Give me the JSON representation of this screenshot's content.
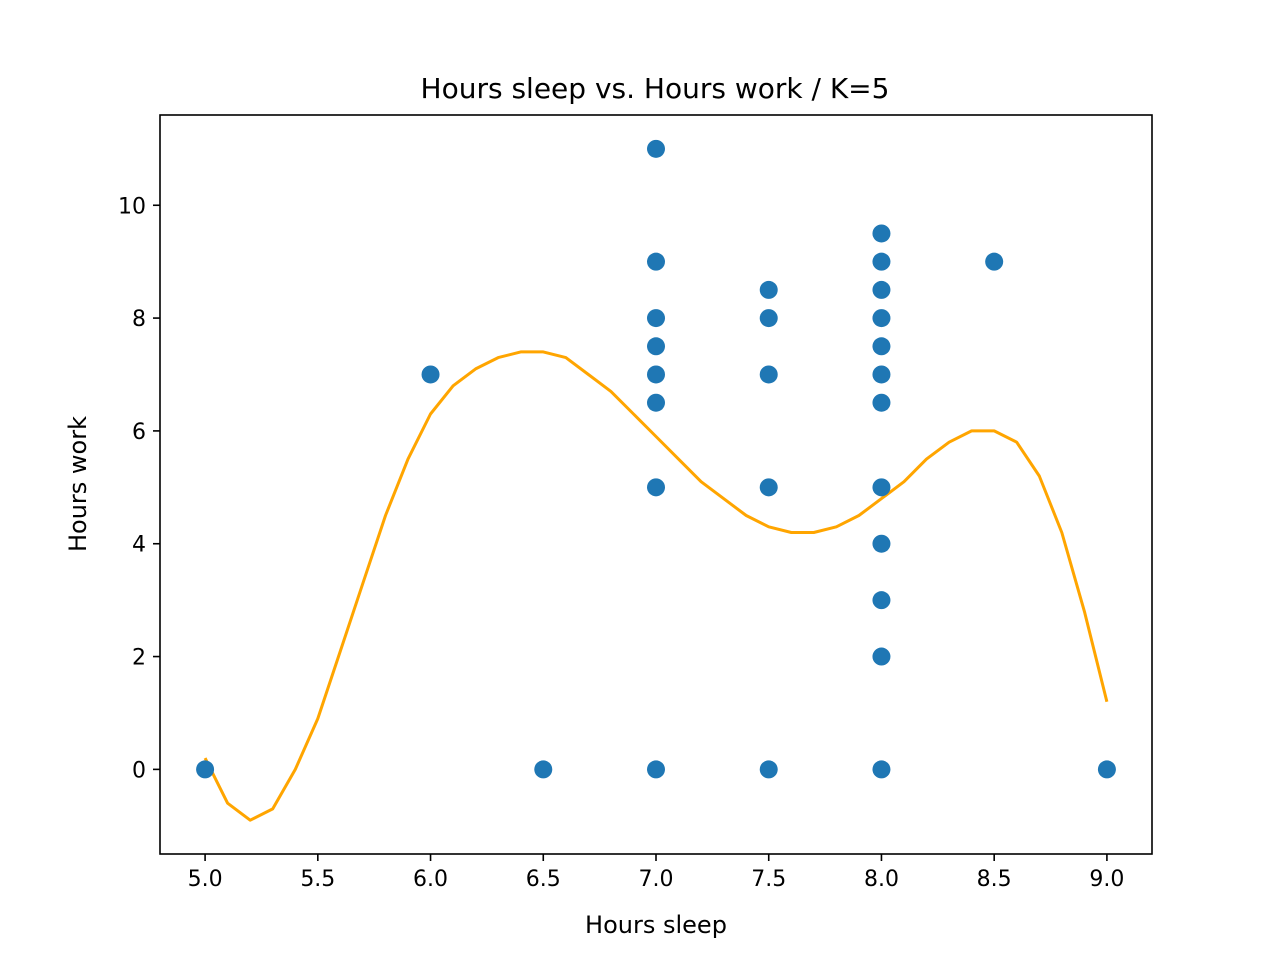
{
  "chart_data": {
    "type": "scatter",
    "title": "Hours sleep vs. Hours work / K=5",
    "xlabel": "Hours sleep",
    "ylabel": "Hours work",
    "xlim": [
      4.8,
      9.2
    ],
    "ylim": [
      -1.5,
      11.6
    ],
    "xticks": [
      "5.0",
      "5.5",
      "6.0",
      "6.5",
      "7.0",
      "7.5",
      "8.0",
      "8.5",
      "9.0"
    ],
    "yticks": [
      "0",
      "2",
      "4",
      "6",
      "8",
      "10"
    ],
    "grid": false,
    "legend": "none",
    "series": [
      {
        "kind": "scatter",
        "color": "#1f77b4",
        "points": [
          [
            5.0,
            0
          ],
          [
            6.0,
            7
          ],
          [
            6.5,
            0
          ],
          [
            7.0,
            11
          ],
          [
            7.0,
            9
          ],
          [
            7.0,
            8
          ],
          [
            7.0,
            7.5
          ],
          [
            7.0,
            7
          ],
          [
            7.0,
            6.5
          ],
          [
            7.0,
            5
          ],
          [
            7.0,
            0
          ],
          [
            7.5,
            8.5
          ],
          [
            7.5,
            8
          ],
          [
            7.5,
            7
          ],
          [
            7.5,
            5
          ],
          [
            7.5,
            0
          ],
          [
            8.0,
            9.5
          ],
          [
            8.0,
            9
          ],
          [
            8.0,
            8.5
          ],
          [
            8.0,
            8
          ],
          [
            8.0,
            7.5
          ],
          [
            8.0,
            7
          ],
          [
            8.0,
            6.5
          ],
          [
            8.0,
            5
          ],
          [
            8.0,
            4
          ],
          [
            8.0,
            3
          ],
          [
            8.0,
            2
          ],
          [
            8.0,
            0
          ],
          [
            8.5,
            9
          ],
          [
            9.0,
            0
          ]
        ]
      },
      {
        "kind": "line",
        "color": "#ffa500",
        "points": [
          [
            5.0,
            0.2
          ],
          [
            5.1,
            -0.6
          ],
          [
            5.2,
            -0.9
          ],
          [
            5.3,
            -0.7
          ],
          [
            5.4,
            0.0
          ],
          [
            5.5,
            0.9
          ],
          [
            5.6,
            2.1
          ],
          [
            5.7,
            3.3
          ],
          [
            5.8,
            4.5
          ],
          [
            5.9,
            5.5
          ],
          [
            6.0,
            6.3
          ],
          [
            6.1,
            6.8
          ],
          [
            6.2,
            7.1
          ],
          [
            6.3,
            7.3
          ],
          [
            6.4,
            7.4
          ],
          [
            6.5,
            7.4
          ],
          [
            6.6,
            7.3
          ],
          [
            6.7,
            7.0
          ],
          [
            6.8,
            6.7
          ],
          [
            6.9,
            6.3
          ],
          [
            7.0,
            5.9
          ],
          [
            7.1,
            5.5
          ],
          [
            7.2,
            5.1
          ],
          [
            7.3,
            4.8
          ],
          [
            7.4,
            4.5
          ],
          [
            7.5,
            4.3
          ],
          [
            7.6,
            4.2
          ],
          [
            7.7,
            4.2
          ],
          [
            7.8,
            4.3
          ],
          [
            7.9,
            4.5
          ],
          [
            8.0,
            4.8
          ],
          [
            8.1,
            5.1
          ],
          [
            8.2,
            5.5
          ],
          [
            8.3,
            5.8
          ],
          [
            8.4,
            6.0
          ],
          [
            8.5,
            6.0
          ],
          [
            8.6,
            5.8
          ],
          [
            8.7,
            5.2
          ],
          [
            8.8,
            4.2
          ],
          [
            8.9,
            2.8
          ],
          [
            9.0,
            1.2
          ]
        ]
      }
    ]
  }
}
